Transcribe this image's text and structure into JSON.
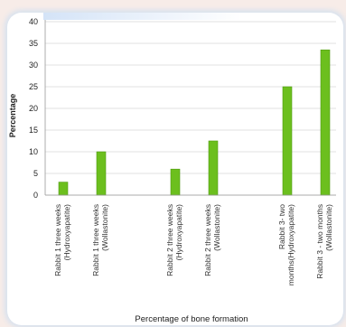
{
  "chart_data": {
    "type": "bar",
    "xlabel": "Percentage of bone formation",
    "ylabel": "Percentage",
    "ylim": [
      0,
      40
    ],
    "yticks": [
      0,
      5,
      10,
      15,
      20,
      25,
      30,
      35,
      40
    ],
    "grid": true,
    "categories": [
      [
        "Rabbit 1 three weeks",
        "(Hydroxyapatite)"
      ],
      [
        "Rabbit 1 three weeks",
        "(Wollastonite)"
      ],
      [
        "Rabbit 2 three weeks",
        "(Hydroxyapatite)"
      ],
      [
        "Rabbit 2 three weeks",
        "(Wollastonite)"
      ],
      [
        "Rabbit 3- two",
        "months(Hydroxyapatite)"
      ],
      [
        "Rabbit 3 - two months",
        "(Wollastonite)"
      ]
    ],
    "values": [
      3,
      10,
      6,
      12.5,
      25,
      33.5
    ],
    "bar_color": "#6cbf1e"
  }
}
